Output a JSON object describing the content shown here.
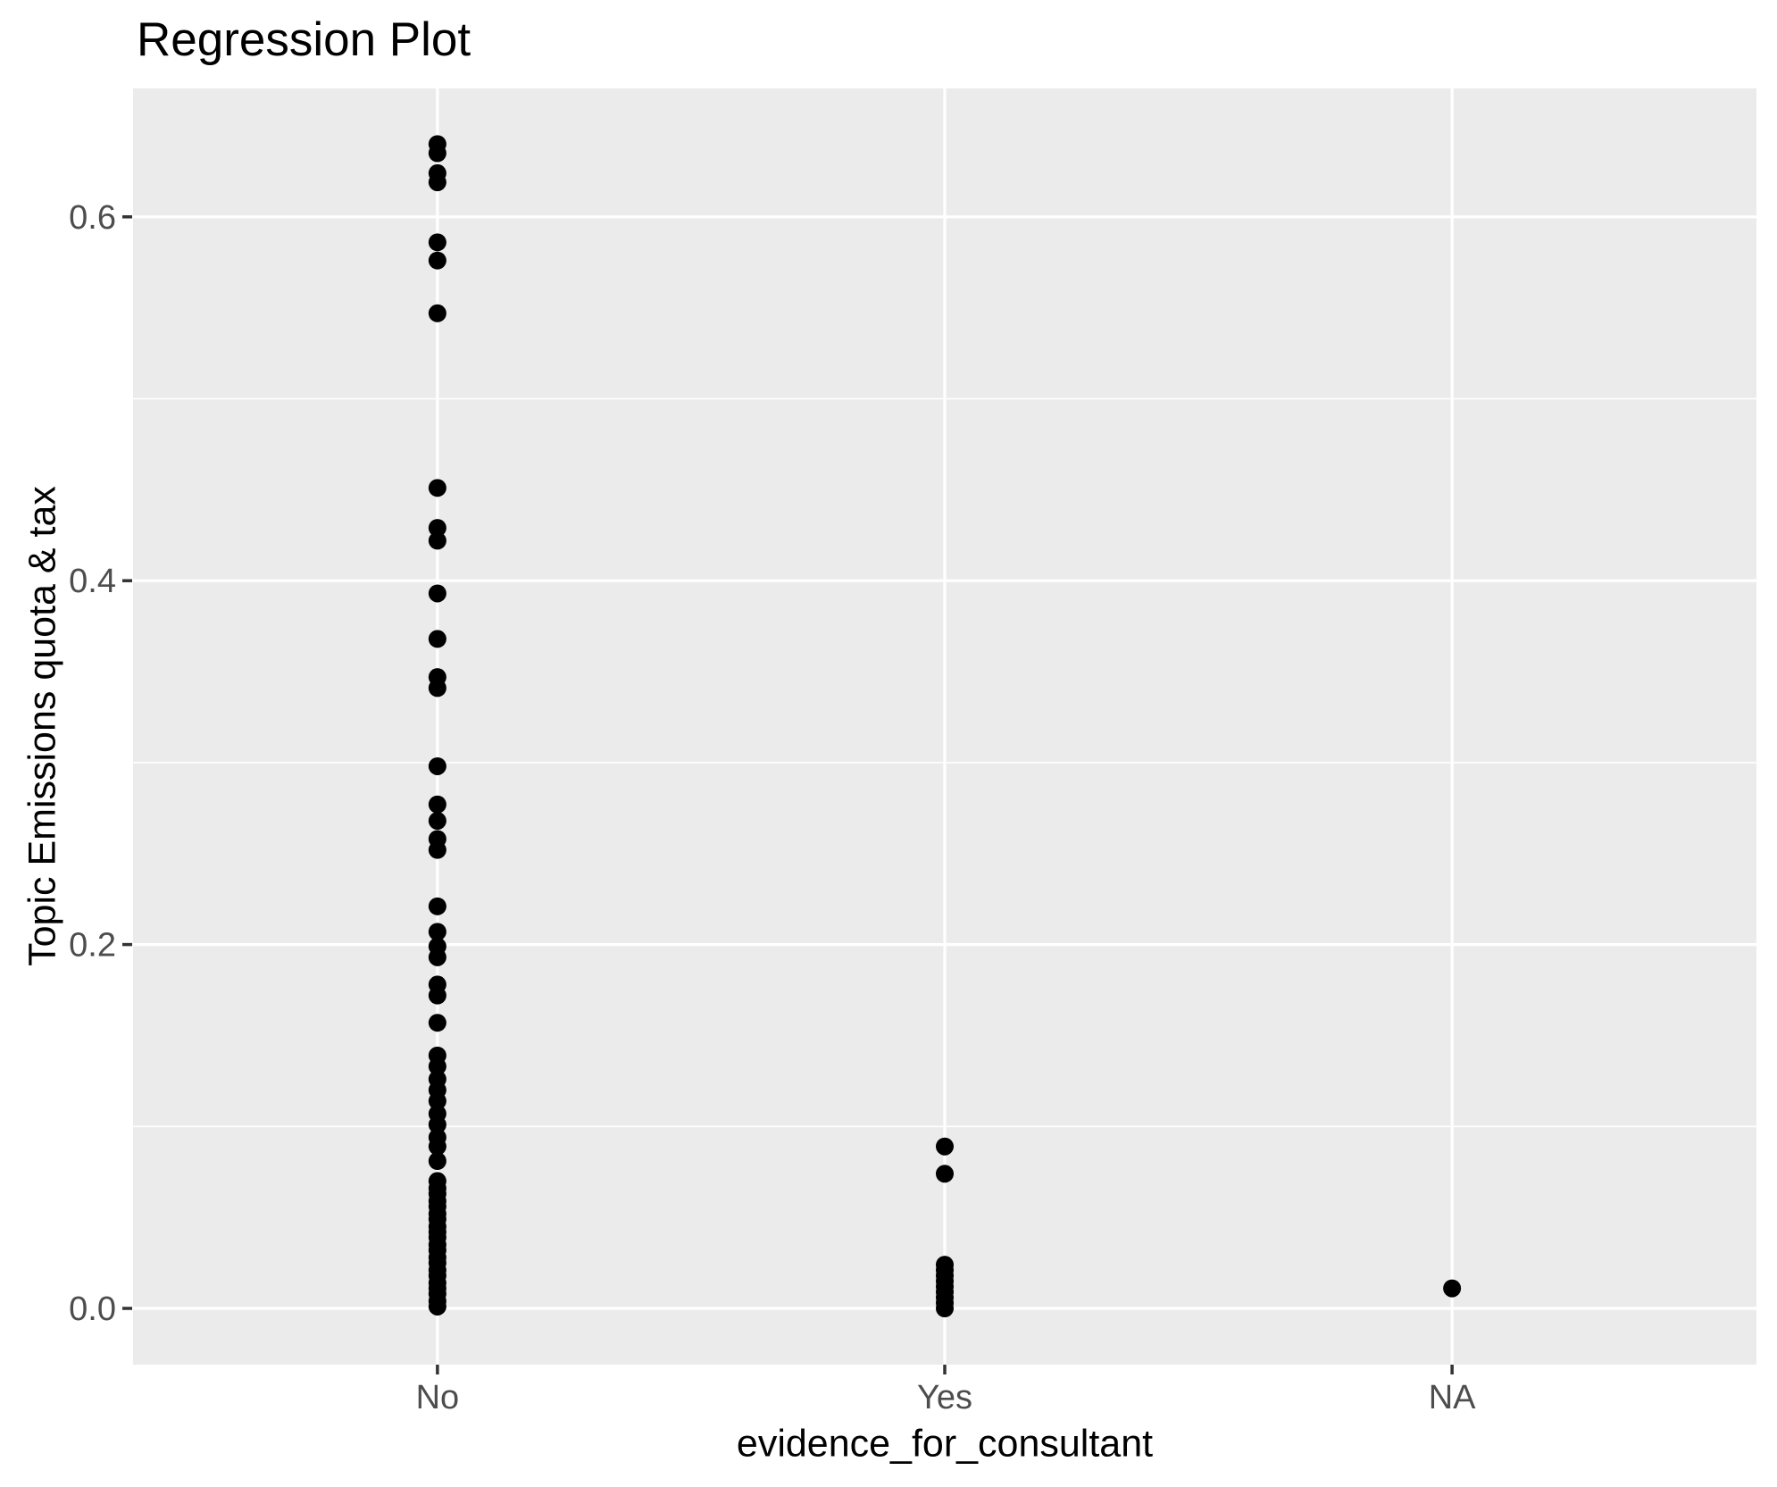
{
  "title": "Regression Plot",
  "chart_data": {
    "type": "scatter",
    "title": "Regression Plot",
    "xlabel": "evidence_for_consultant",
    "ylabel": "Topic Emissions quota & tax",
    "categories": [
      "No",
      "Yes",
      "NA"
    ],
    "x_axis": {
      "ticks": [
        "No",
        "Yes",
        "NA"
      ]
    },
    "y_axis": {
      "tick_labels": [
        "0.0",
        "0.2",
        "0.4",
        "0.6"
      ],
      "tick_values": [
        0.0,
        0.2,
        0.4,
        0.6
      ],
      "minor_gridline_values": [
        0.1,
        0.3,
        0.5
      ],
      "ylim": [
        -0.031,
        0.672
      ]
    },
    "grid": "white major and minor horizontal gridlines plus white major vertical gridlines on grey panel",
    "legend_position": "none",
    "series": [
      {
        "name": "No",
        "values": [
          0.64,
          0.635,
          0.624,
          0.619,
          0.586,
          0.576,
          0.547,
          0.451,
          0.429,
          0.422,
          0.393,
          0.368,
          0.347,
          0.341,
          0.298,
          0.277,
          0.268,
          0.258,
          0.252,
          0.221,
          0.207,
          0.199,
          0.193,
          0.178,
          0.172,
          0.157,
          0.139,
          0.133,
          0.126,
          0.12,
          0.114,
          0.107,
          0.101,
          0.094,
          0.089,
          0.081,
          0.07,
          0.066,
          0.063,
          0.059,
          0.056,
          0.052,
          0.049,
          0.045,
          0.042,
          0.039,
          0.035,
          0.032,
          0.028,
          0.025,
          0.021,
          0.018,
          0.014,
          0.011,
          0.008,
          0.004,
          0.001
        ]
      },
      {
        "name": "Yes",
        "values": [
          0.089,
          0.074,
          0.024,
          0.021,
          0.018,
          0.015,
          0.012,
          0.009,
          0.006,
          0.003,
          0.0
        ]
      },
      {
        "name": "NA",
        "values": [
          0.011
        ]
      }
    ],
    "colors": {
      "point": "#000000",
      "panel_background": "#EBEBEB",
      "gridline": "#FFFFFF",
      "tick_mark": "#333333",
      "tick_label": "#4D4D4D",
      "title": "#000000"
    }
  }
}
